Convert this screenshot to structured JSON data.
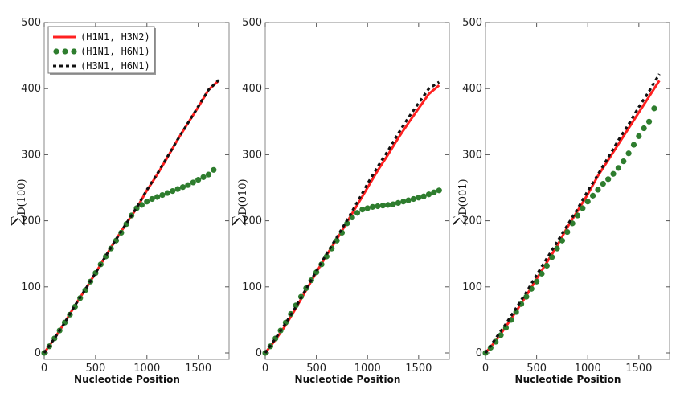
{
  "chart_data": [
    {
      "type": "line",
      "xlabel": "Nucleotide Position",
      "ylabel_sum": "∑",
      "ylabel_sub": "D(100)",
      "xlim": [
        0,
        1800
      ],
      "ylim": [
        0,
        500
      ],
      "xticks": [
        0,
        500,
        1000,
        1500
      ],
      "yticks": [
        0,
        100,
        200,
        300,
        400,
        500
      ],
      "legend": "top-left",
      "series": [
        {
          "name": "(H1N1, H3N2)",
          "color": "#ff2020",
          "style": "solid",
          "x": [
            0,
            100,
            200,
            300,
            400,
            500,
            600,
            700,
            800,
            900,
            1000,
            1100,
            1200,
            1300,
            1400,
            1500,
            1600,
            1700
          ],
          "y": [
            0,
            22,
            46,
            72,
            96,
            121,
            147,
            172,
            196,
            219,
            246,
            270,
            296,
            323,
            348,
            372,
            398,
            412
          ]
        },
        {
          "name": "(H1N1, H6N1)",
          "color": "#2e7d2e",
          "style": "dots",
          "x": [
            0,
            50,
            100,
            150,
            200,
            250,
            300,
            350,
            400,
            450,
            500,
            550,
            600,
            650,
            700,
            750,
            800,
            850,
            900,
            950,
            1000,
            1050,
            1100,
            1150,
            1200,
            1250,
            1300,
            1350,
            1400,
            1450,
            1500,
            1550,
            1600,
            1650
          ],
          "y": [
            0,
            10,
            22,
            34,
            46,
            58,
            70,
            83,
            95,
            108,
            121,
            134,
            146,
            158,
            170,
            182,
            195,
            208,
            219,
            224,
            229,
            233,
            236,
            239,
            242,
            245,
            248,
            251,
            254,
            258,
            262,
            266,
            270,
            277
          ]
        },
        {
          "name": "(H3N1, H6N1)",
          "color": "#111111",
          "style": "dashed",
          "x": [
            0,
            100,
            200,
            300,
            400,
            500,
            600,
            700,
            800,
            900,
            1000,
            1100,
            1200,
            1300,
            1400,
            1500,
            1600,
            1700
          ],
          "y": [
            0,
            22,
            46,
            72,
            96,
            121,
            147,
            172,
            196,
            220,
            247,
            271,
            297,
            323,
            348,
            373,
            398,
            413
          ]
        }
      ]
    },
    {
      "type": "line",
      "xlabel": "Nucleotide Position",
      "ylabel_sum": "∑",
      "ylabel_sub": "D(010)",
      "xlim": [
        0,
        1800
      ],
      "ylim": [
        0,
        500
      ],
      "xticks": [
        0,
        500,
        1000,
        1500
      ],
      "yticks": [
        0,
        100,
        200,
        300,
        400,
        500
      ],
      "series": [
        {
          "name": "(H1N1, H3N2)",
          "color": "#ff2020",
          "style": "solid",
          "x": [
            0,
            100,
            200,
            300,
            400,
            500,
            600,
            700,
            800,
            900,
            1000,
            1100,
            1200,
            1300,
            1400,
            1500,
            1600,
            1700
          ],
          "y": [
            0,
            20,
            42,
            68,
            95,
            122,
            148,
            172,
            198,
            224,
            250,
            276,
            300,
            325,
            348,
            370,
            392,
            405
          ]
        },
        {
          "name": "(H1N1, H6N1)",
          "color": "#2e7d2e",
          "style": "dots",
          "x": [
            0,
            50,
            100,
            150,
            200,
            250,
            300,
            350,
            400,
            450,
            500,
            550,
            600,
            650,
            700,
            750,
            800,
            850,
            900,
            950,
            1000,
            1050,
            1100,
            1150,
            1200,
            1250,
            1300,
            1350,
            1400,
            1450,
            1500,
            1550,
            1600,
            1650,
            1700
          ],
          "y": [
            0,
            10,
            22,
            34,
            46,
            59,
            72,
            85,
            98,
            110,
            122,
            134,
            146,
            158,
            170,
            182,
            196,
            205,
            212,
            217,
            219,
            221,
            222,
            223,
            224,
            225,
            227,
            229,
            231,
            233,
            235,
            237,
            240,
            243,
            246
          ]
        },
        {
          "name": "(H3N1, H6N1)",
          "color": "#111111",
          "style": "dashed",
          "x": [
            0,
            100,
            200,
            300,
            400,
            500,
            600,
            700,
            800,
            900,
            1000,
            1100,
            1200,
            1300,
            1400,
            1500,
            1600,
            1700
          ],
          "y": [
            0,
            22,
            45,
            70,
            97,
            124,
            150,
            175,
            201,
            228,
            256,
            282,
            306,
            332,
            356,
            378,
            400,
            410
          ]
        }
      ]
    },
    {
      "type": "line",
      "xlabel": "Nucleotide Position",
      "ylabel_sum": "∑",
      "ylabel_sub": "D(001)",
      "xlim": [
        0,
        1800
      ],
      "ylim": [
        0,
        500
      ],
      "xticks": [
        0,
        500,
        1000,
        1500
      ],
      "yticks": [
        0,
        100,
        200,
        300,
        400,
        500
      ],
      "series": [
        {
          "name": "(H1N1, H3N2)",
          "color": "#ff2020",
          "style": "solid",
          "x": [
            0,
            100,
            200,
            300,
            400,
            500,
            600,
            700,
            800,
            900,
            1000,
            1100,
            1200,
            1300,
            1400,
            1500,
            1600,
            1700
          ],
          "y": [
            0,
            18,
            40,
            63,
            87,
            112,
            137,
            162,
            190,
            215,
            240,
            268,
            292,
            316,
            340,
            364,
            388,
            412
          ]
        },
        {
          "name": "(H1N1, H6N1)",
          "color": "#2e7d2e",
          "style": "dots",
          "x": [
            0,
            50,
            100,
            150,
            200,
            250,
            300,
            350,
            400,
            450,
            500,
            550,
            600,
            650,
            700,
            750,
            800,
            850,
            900,
            950,
            1000,
            1050,
            1100,
            1150,
            1200,
            1250,
            1300,
            1350,
            1400,
            1450,
            1500,
            1550,
            1600,
            1650
          ],
          "y": [
            0,
            8,
            17,
            27,
            38,
            50,
            62,
            74,
            85,
            97,
            108,
            120,
            132,
            145,
            158,
            170,
            183,
            196,
            208,
            219,
            229,
            238,
            247,
            256,
            263,
            271,
            280,
            290,
            302,
            315,
            328,
            340,
            350,
            370
          ]
        },
        {
          "name": "(H3N1, H6N1)",
          "color": "#111111",
          "style": "dashed",
          "x": [
            0,
            100,
            200,
            300,
            400,
            500,
            600,
            700,
            800,
            900,
            1000,
            1100,
            1200,
            1300,
            1400,
            1500,
            1600,
            1700
          ],
          "y": [
            0,
            22,
            44,
            68,
            92,
            118,
            143,
            168,
            193,
            218,
            245,
            270,
            296,
            322,
            346,
            372,
            396,
            422
          ]
        }
      ]
    }
  ]
}
